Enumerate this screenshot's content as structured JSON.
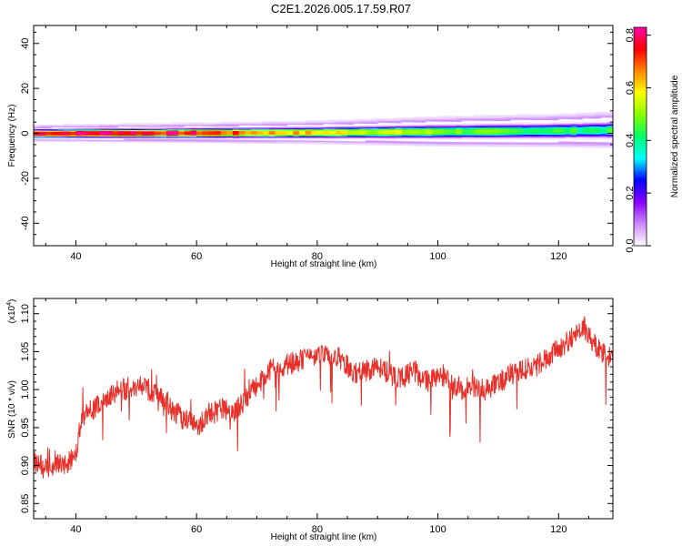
{
  "title": "C2E1.2026.005.17.59.R07",
  "chart_data": [
    {
      "type": "heatmap",
      "xlabel": "Height of straight line (km)",
      "ylabel": "Frequency (Hz)",
      "xlim": [
        33,
        129
      ],
      "ylim": [
        -50,
        48
      ],
      "x_ticks": [
        40,
        60,
        80,
        100,
        120
      ],
      "y_ticks": [
        40,
        20,
        0,
        -20,
        -40
      ],
      "band_center_hz": [
        [
          33,
          0.0
        ],
        [
          60,
          0.2
        ],
        [
          80,
          0.4
        ],
        [
          100,
          0.8
        ],
        [
          120,
          1.2
        ],
        [
          129,
          1.5
        ]
      ],
      "band_halfwidth_hz": [
        [
          33,
          2.5
        ],
        [
          60,
          3.0
        ],
        [
          80,
          3.5
        ],
        [
          100,
          4.5
        ],
        [
          120,
          5.0
        ],
        [
          129,
          5.5
        ]
      ],
      "peak_amplitude": [
        [
          33,
          0.78
        ],
        [
          45,
          0.8
        ],
        [
          60,
          0.74
        ],
        [
          70,
          0.65
        ],
        [
          80,
          0.6
        ],
        [
          90,
          0.55
        ],
        [
          100,
          0.5
        ],
        [
          110,
          0.45
        ],
        [
          129,
          0.42
        ]
      ],
      "colorbar": {
        "label": "Normalized spectral amplitude",
        "range": [
          0,
          0.83
        ],
        "ticks": [
          "0.0",
          "0.2",
          "0.4",
          "0.6",
          "0.8"
        ],
        "colors": [
          "#ffffff",
          "#cc88ff",
          "#8800ff",
          "#0000ff",
          "#00ffff",
          "#00ff66",
          "#88ff00",
          "#ffff00",
          "#ff8800",
          "#ff0000",
          "#ff00aa"
        ]
      }
    },
    {
      "type": "line",
      "xlabel": "Height of straight line (km)",
      "ylabel": "SNR (10 * v/v)",
      "exponent_label": "(x10",
      "exponent": "4",
      "xlim": [
        33,
        129
      ],
      "ylim": [
        0.83,
        1.12
      ],
      "x_ticks": [
        40,
        60,
        80,
        100,
        120
      ],
      "y_ticks": [
        "0.85",
        "0.90",
        "0.95",
        "1.00",
        "1.05",
        "1.10"
      ],
      "line_color": "#e8302a",
      "series": [
        {
          "x": [
            33,
            35,
            37,
            39,
            40,
            41,
            42,
            44,
            46,
            48,
            50,
            52,
            54,
            56,
            58,
            60,
            62,
            64,
            66,
            68,
            70,
            72,
            74,
            76,
            78,
            80,
            82,
            84,
            86,
            88,
            90,
            92,
            94,
            96,
            98,
            100,
            102,
            104,
            106,
            108,
            110,
            112,
            114,
            116,
            118,
            120,
            122,
            124,
            126,
            128,
            129
          ],
          "values": [
            0.905,
            0.895,
            0.9,
            0.905,
            0.92,
            0.96,
            0.97,
            0.98,
            0.995,
            1.0,
            1.005,
            1.0,
            0.995,
            0.975,
            0.96,
            0.95,
            0.965,
            0.975,
            0.97,
            0.985,
            1.005,
            1.025,
            1.03,
            1.035,
            1.04,
            1.045,
            1.045,
            1.04,
            1.02,
            1.025,
            1.03,
            1.02,
            1.015,
            1.025,
            1.01,
            1.02,
            1.01,
            1.0,
            1.005,
            1.0,
            1.01,
            1.02,
            1.025,
            1.03,
            1.04,
            1.055,
            1.065,
            1.085,
            1.06,
            1.045,
            1.04
          ]
        }
      ]
    }
  ]
}
